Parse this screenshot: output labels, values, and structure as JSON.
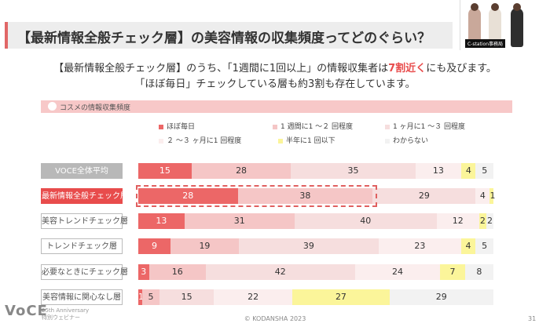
{
  "slide": {
    "title": "【最新情報全般チェック層】の美容情報の収集頻度ってどのぐらい？",
    "subtitle_line1_a": "【最新情報全般チェック層】のうち、「1週間に1回以上」の情報収集者は",
    "subtitle_line1_accent": "7割近く",
    "subtitle_line1_b": "にも及びます。",
    "subtitle_line2": "「ほぼ毎日」チェックしている層も約3割も存在しています。",
    "chart_header": "コスメの情報収集頻度"
  },
  "video": {
    "caption": "C-station事務局"
  },
  "footer": {
    "logo": "VoCE",
    "sub_line1": "25th Anniversary",
    "sub_line2": "特別ウェビナー",
    "copyright": "© KODANSHA 2023",
    "page": "31"
  },
  "chart_data": {
    "type": "bar",
    "stacked": true,
    "orientation": "horizontal",
    "title": "コスメの情報収集頻度",
    "legend": [
      "ほぼ毎日",
      "1 週間に1 ～２ 回程度",
      "1 ヶ月に1 ～３ 回程度",
      "２ ～３ ヶ月に1 回程度",
      "半年に1 回以下",
      "わからない"
    ],
    "colors": [
      "#ec6767",
      "#f5c6c6",
      "#f6dede",
      "#fbeeee",
      "#fbf59a",
      "#f2f2f2"
    ],
    "categories": [
      "VOCE全体平均",
      "最新情報全般チェック層",
      "美容トレンドチェック層",
      "トレンドチェック層",
      "必要なときにチェック層",
      "美容情報に関心なし層"
    ],
    "series": [
      {
        "name": "ほぼ毎日",
        "values": [
          15,
          28,
          13,
          9,
          3,
          1
        ]
      },
      {
        "name": "1 週間に1 ～２ 回程度",
        "values": [
          28,
          38,
          31,
          19,
          16,
          5
        ]
      },
      {
        "name": "1 ヶ月に1 ～３ 回程度",
        "values": [
          35,
          29,
          40,
          39,
          42,
          15
        ]
      },
      {
        "name": "２ ～３ ヶ月に1 回程度",
        "values": [
          13,
          4,
          12,
          23,
          24,
          22
        ]
      },
      {
        "name": "半年に1 回以下",
        "values": [
          4,
          1,
          2,
          4,
          7,
          27
        ]
      },
      {
        "name": "わからない",
        "values": [
          5,
          0,
          2,
          5,
          8,
          29
        ]
      }
    ],
    "row_labels_display": [
      "15",
      "28",
      "35",
      "13",
      "4",
      "5"
    ],
    "xlim": [
      0,
      100
    ]
  }
}
